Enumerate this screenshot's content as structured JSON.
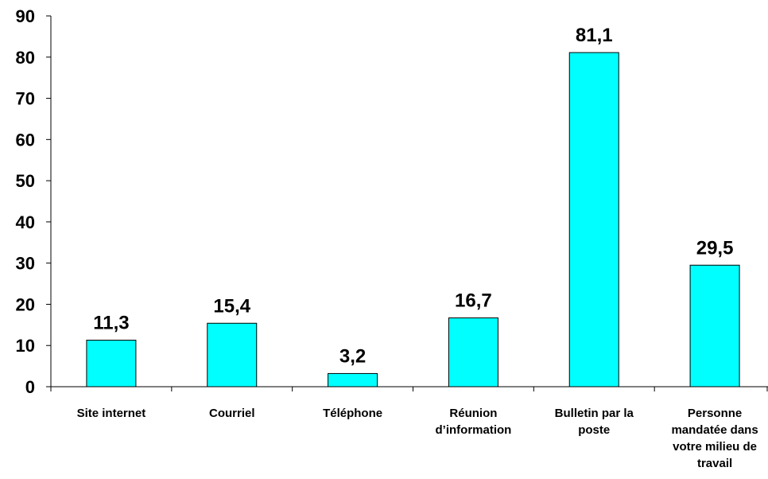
{
  "chart_data": {
    "type": "bar",
    "categories": [
      "Site internet",
      "Courriel",
      "Téléphone",
      "Réunion d’information",
      "Bulletin par la poste",
      "Personne mandatée dans votre milieu de travail"
    ],
    "category_lines": [
      [
        "Site internet"
      ],
      [
        "Courriel"
      ],
      [
        "Téléphone"
      ],
      [
        "Réunion",
        "d’information"
      ],
      [
        "Bulletin par la",
        "poste"
      ],
      [
        "Personne",
        "mandatée dans",
        "votre milieu de",
        "travail"
      ]
    ],
    "values": [
      11.3,
      15.4,
      3.2,
      16.7,
      81.1,
      29.5
    ],
    "value_labels": [
      "11,3",
      "15,4",
      "3,2",
      "16,7",
      "81,1",
      "29,5"
    ],
    "yticks": [
      0,
      10,
      20,
      30,
      40,
      50,
      60,
      70,
      80,
      90
    ],
    "ylim": [
      0,
      90
    ],
    "title": "",
    "xlabel": "",
    "ylabel": "",
    "grid": false,
    "legend": "none",
    "colors": {
      "bar_fill": "#00FFFF",
      "bar_stroke": "#000000",
      "axis": "#000000",
      "text": "#000000"
    }
  }
}
